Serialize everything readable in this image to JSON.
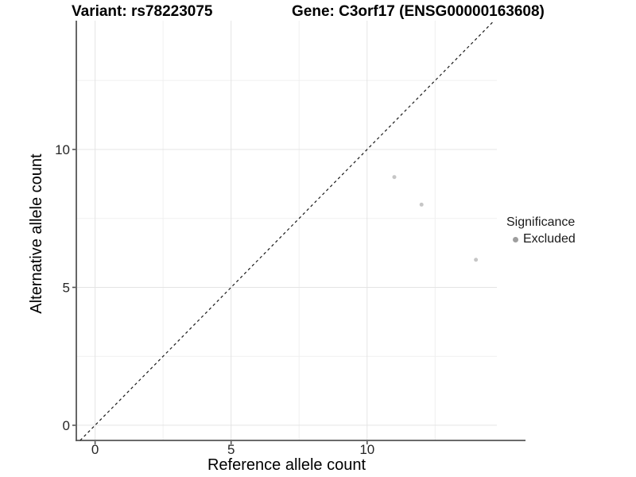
{
  "titles": {
    "left": "Variant: rs78223075",
    "right": "Gene: C3orf17 (ENSG00000163608)"
  },
  "legend": {
    "title": "Significance",
    "items": [
      {
        "label": "Excluded",
        "color": "#9e9e9e"
      }
    ]
  },
  "chart_data": {
    "type": "scatter",
    "title_left": "Variant: rs78223075",
    "title_right": "Gene: C3orf17 (ENSG00000163608)",
    "xlabel": "Reference allele count",
    "ylabel": "Alternative allele count",
    "xlim": [
      -0.69,
      14.77
    ],
    "ylim": [
      -0.55,
      14.67
    ],
    "x_ticks": [
      0,
      5,
      10
    ],
    "y_ticks": [
      0,
      5,
      10
    ],
    "x_minor_ticks": [
      2.5,
      7.5,
      12.5
    ],
    "y_minor_ticks": [
      2.5,
      7.5,
      12.5
    ],
    "grid": true,
    "legend_position": "right",
    "series": [
      {
        "name": "Excluded",
        "point_color": "#c6c6c6",
        "points": [
          {
            "x": 11,
            "y": 9
          },
          {
            "x": 12,
            "y": 8
          },
          {
            "x": 14,
            "y": 6
          }
        ]
      }
    ],
    "reference_line": {
      "type": "identity_y_equals_x",
      "style": "dashed",
      "color": "#1a1a1a"
    },
    "colors": {
      "major_grid": "#e4e4e4",
      "minor_grid": "#f0f0f0",
      "axis_line": "#555555",
      "tick_text": "#262626"
    }
  }
}
